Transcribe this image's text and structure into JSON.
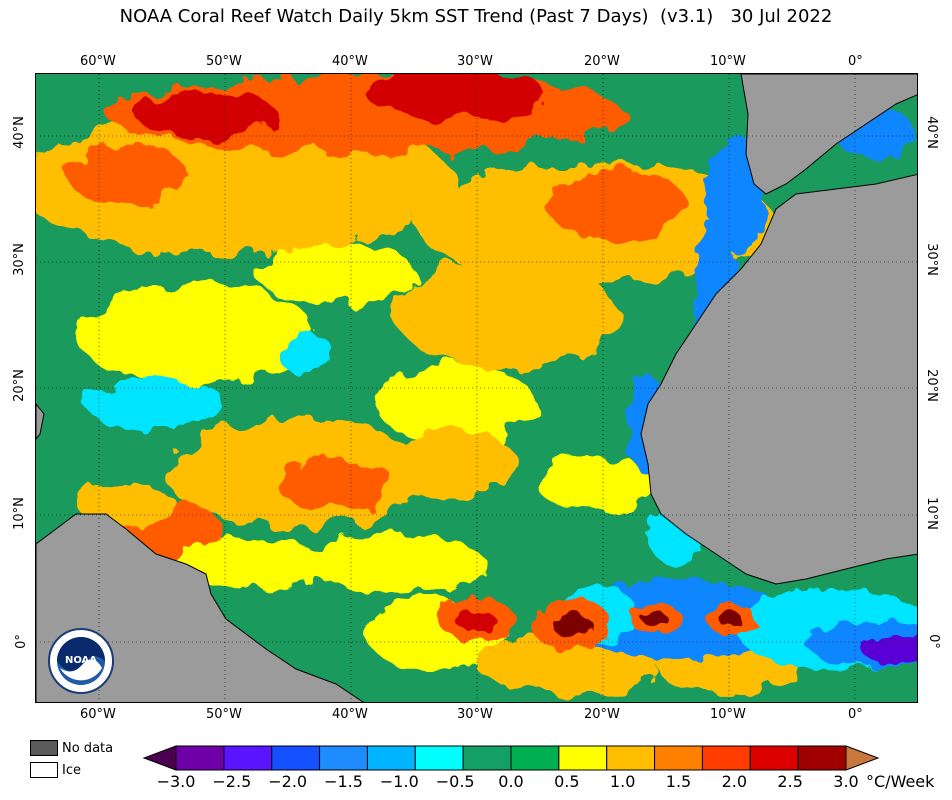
{
  "title": "NOAA Coral Reef Watch Daily 5km SST Trend (Past 7 Days)  (v3.1)   30 Jul 2022",
  "map": {
    "lon_labels": [
      "60°W",
      "50°W",
      "40°W",
      "30°W",
      "20°W",
      "10°W",
      "0°"
    ],
    "lat_labels": [
      "40°N",
      "30°N",
      "20°N",
      "10°N",
      "0°"
    ],
    "colors": {
      "land": "#9b9b9b",
      "ocean_neutral": "#1a9a5c",
      "cool_light": "#00e5ff",
      "cool_mid": "#0a86ff",
      "cool_deep": "#5a00d6",
      "warm_yellow": "#ffff00",
      "warm_gold": "#ffbf00",
      "warm_orange": "#ff5b00",
      "warm_red": "#d20000",
      "warm_dark": "#7d0000"
    }
  },
  "legend": {
    "no_data_label": "No data",
    "ice_label": "Ice",
    "no_data_color": "#5a5a5a",
    "ice_color": "#ffffff"
  },
  "colorbar": {
    "labels": [
      "−3.0",
      "−2.5",
      "−2.0",
      "−1.5",
      "−1.0",
      "−0.5",
      "0.0",
      "0.5",
      "1.0",
      "1.5",
      "2.0",
      "2.5",
      "3.0"
    ],
    "unit": "°C/Week",
    "colors": [
      "#4a0050",
      "#6f00a8",
      "#5a14ff",
      "#1450ff",
      "#1e8cff",
      "#00b4ff",
      "#00ffff",
      "#14a064",
      "#00b050",
      "#ffff00",
      "#ffbf00",
      "#ff8000",
      "#ff3c00",
      "#dc0000",
      "#a00000",
      "#6e0000"
    ]
  },
  "logo_text": "NOAA"
}
